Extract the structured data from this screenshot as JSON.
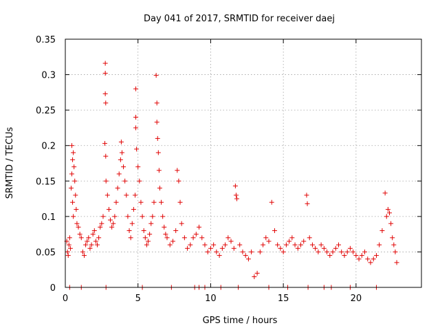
{
  "chart_data": {
    "type": "scatter",
    "title": "Day 041 of 2017, SRMTID for receiver daej",
    "xlabel": "GPS time / hours",
    "ylabel": "SRMTID / TECUs",
    "xlim": [
      0,
      24.5
    ],
    "ylim": [
      0,
      0.35
    ],
    "xticks": [
      0,
      5,
      10,
      15,
      20
    ],
    "xtick_labels": [
      "0",
      "5",
      "10",
      "15",
      "20"
    ],
    "yticks": [
      0,
      0.05,
      0.1,
      0.15,
      0.2,
      0.25,
      0.3,
      0.35
    ],
    "ytick_labels": [
      "0",
      "0.05",
      "0.1",
      "0.15",
      "0.2",
      "0.25",
      "0.3",
      "0.35"
    ],
    "grid": true,
    "marker": "plus",
    "color": "#e00000",
    "series": [
      {
        "name": "SRMTID",
        "points": [
          [
            0.1,
            0.065
          ],
          [
            0.15,
            0.05
          ],
          [
            0.2,
            0.045
          ],
          [
            0.25,
            0.06
          ],
          [
            0.3,
            0.07
          ],
          [
            0.35,
            0.055
          ],
          [
            0.4,
            0.14
          ],
          [
            0.45,
            0.16
          ],
          [
            0.5,
            0.18
          ],
          [
            0.55,
            0.19
          ],
          [
            0.6,
            0.17
          ],
          [
            0.65,
            0.15
          ],
          [
            0.7,
            0.13
          ],
          [
            0.75,
            0.11
          ],
          [
            0.8,
            0.09
          ],
          [
            0.45,
            0.2
          ],
          [
            0.5,
            0.12
          ],
          [
            0.55,
            0.1
          ],
          [
            0.9,
            0.085
          ],
          [
            1.0,
            0.075
          ],
          [
            1.1,
            0.07
          ],
          [
            1.2,
            0.05
          ],
          [
            1.3,
            0.045
          ],
          [
            1.4,
            0.06
          ],
          [
            1.5,
            0.065
          ],
          [
            1.6,
            0.07
          ],
          [
            1.7,
            0.055
          ],
          [
            1.8,
            0.06
          ],
          [
            1.9,
            0.075
          ],
          [
            2.0,
            0.08
          ],
          [
            2.1,
            0.065
          ],
          [
            2.2,
            0.06
          ],
          [
            2.3,
            0.07
          ],
          [
            2.4,
            0.085
          ],
          [
            2.5,
            0.09
          ],
          [
            2.6,
            0.1
          ],
          [
            2.75,
            0.316
          ],
          [
            2.75,
            0.302
          ],
          [
            2.75,
            0.273
          ],
          [
            2.78,
            0.26
          ],
          [
            2.72,
            0.203
          ],
          [
            2.78,
            0.185
          ],
          [
            2.8,
            0.15
          ],
          [
            2.9,
            0.13
          ],
          [
            3.0,
            0.11
          ],
          [
            3.1,
            0.095
          ],
          [
            3.2,
            0.085
          ],
          [
            3.3,
            0.09
          ],
          [
            3.4,
            0.1
          ],
          [
            3.5,
            0.12
          ],
          [
            3.6,
            0.14
          ],
          [
            3.7,
            0.16
          ],
          [
            3.8,
            0.18
          ],
          [
            3.85,
            0.205
          ],
          [
            3.9,
            0.19
          ],
          [
            4.0,
            0.17
          ],
          [
            4.1,
            0.15
          ],
          [
            4.2,
            0.13
          ],
          [
            4.3,
            0.1
          ],
          [
            4.4,
            0.08
          ],
          [
            4.5,
            0.07
          ],
          [
            4.6,
            0.09
          ],
          [
            4.7,
            0.11
          ],
          [
            4.8,
            0.13
          ],
          [
            4.85,
            0.28
          ],
          [
            4.85,
            0.24
          ],
          [
            4.85,
            0.225
          ],
          [
            4.9,
            0.195
          ],
          [
            5.0,
            0.17
          ],
          [
            5.1,
            0.15
          ],
          [
            5.2,
            0.12
          ],
          [
            5.3,
            0.1
          ],
          [
            5.4,
            0.08
          ],
          [
            5.5,
            0.07
          ],
          [
            5.6,
            0.06
          ],
          [
            5.7,
            0.065
          ],
          [
            5.8,
            0.075
          ],
          [
            5.9,
            0.09
          ],
          [
            6.0,
            0.1
          ],
          [
            6.1,
            0.12
          ],
          [
            6.25,
            0.299
          ],
          [
            6.3,
            0.26
          ],
          [
            6.3,
            0.233
          ],
          [
            6.35,
            0.21
          ],
          [
            6.4,
            0.19
          ],
          [
            6.45,
            0.165
          ],
          [
            6.5,
            0.14
          ],
          [
            6.6,
            0.12
          ],
          [
            6.7,
            0.1
          ],
          [
            6.8,
            0.085
          ],
          [
            6.9,
            0.075
          ],
          [
            7.0,
            0.07
          ],
          [
            7.2,
            0.06
          ],
          [
            7.4,
            0.065
          ],
          [
            7.6,
            0.08
          ],
          [
            7.7,
            0.165
          ],
          [
            7.8,
            0.15
          ],
          [
            7.9,
            0.12
          ],
          [
            8.0,
            0.09
          ],
          [
            8.2,
            0.07
          ],
          [
            8.4,
            0.055
          ],
          [
            8.6,
            0.06
          ],
          [
            8.8,
            0.07
          ],
          [
            9.0,
            0.075
          ],
          [
            9.2,
            0.085
          ],
          [
            9.4,
            0.07
          ],
          [
            9.6,
            0.06
          ],
          [
            9.8,
            0.05
          ],
          [
            10.0,
            0.055
          ],
          [
            10.2,
            0.06
          ],
          [
            10.4,
            0.05
          ],
          [
            10.6,
            0.045
          ],
          [
            10.8,
            0.055
          ],
          [
            11.0,
            0.06
          ],
          [
            11.2,
            0.07
          ],
          [
            11.4,
            0.065
          ],
          [
            11.6,
            0.055
          ],
          [
            11.7,
            0.143
          ],
          [
            11.75,
            0.13
          ],
          [
            11.8,
            0.125
          ],
          [
            12.0,
            0.06
          ],
          [
            12.2,
            0.05
          ],
          [
            12.4,
            0.045
          ],
          [
            12.6,
            0.04
          ],
          [
            12.8,
            0.05
          ],
          [
            13.0,
            0.015
          ],
          [
            13.2,
            0.02
          ],
          [
            13.4,
            0.05
          ],
          [
            13.6,
            0.06
          ],
          [
            13.8,
            0.07
          ],
          [
            14.0,
            0.065
          ],
          [
            14.2,
            0.12
          ],
          [
            14.4,
            0.08
          ],
          [
            14.6,
            0.06
          ],
          [
            14.8,
            0.055
          ],
          [
            15.0,
            0.05
          ],
          [
            15.2,
            0.06
          ],
          [
            15.4,
            0.065
          ],
          [
            15.6,
            0.07
          ],
          [
            15.8,
            0.06
          ],
          [
            16.0,
            0.055
          ],
          [
            16.2,
            0.06
          ],
          [
            16.4,
            0.065
          ],
          [
            16.6,
            0.13
          ],
          [
            16.65,
            0.118
          ],
          [
            16.8,
            0.07
          ],
          [
            17.0,
            0.06
          ],
          [
            17.2,
            0.055
          ],
          [
            17.4,
            0.05
          ],
          [
            17.6,
            0.06
          ],
          [
            17.8,
            0.055
          ],
          [
            18.0,
            0.05
          ],
          [
            18.2,
            0.045
          ],
          [
            18.4,
            0.05
          ],
          [
            18.6,
            0.055
          ],
          [
            18.8,
            0.06
          ],
          [
            19.0,
            0.05
          ],
          [
            19.2,
            0.045
          ],
          [
            19.4,
            0.05
          ],
          [
            19.6,
            0.055
          ],
          [
            19.8,
            0.05
          ],
          [
            20.0,
            0.045
          ],
          [
            20.2,
            0.04
          ],
          [
            20.4,
            0.045
          ],
          [
            20.6,
            0.05
          ],
          [
            20.8,
            0.04
          ],
          [
            21.0,
            0.035
          ],
          [
            21.2,
            0.04
          ],
          [
            21.4,
            0.045
          ],
          [
            21.6,
            0.06
          ],
          [
            21.8,
            0.08
          ],
          [
            22.0,
            0.133
          ],
          [
            22.1,
            0.1
          ],
          [
            22.2,
            0.11
          ],
          [
            22.3,
            0.105
          ],
          [
            22.4,
            0.09
          ],
          [
            22.5,
            0.07
          ],
          [
            22.6,
            0.06
          ],
          [
            22.7,
            0.05
          ],
          [
            22.8,
            0.035
          ],
          [
            0.3,
            0.0
          ],
          [
            1.1,
            0.0
          ],
          [
            2.8,
            0.0
          ],
          [
            5.3,
            0.0
          ],
          [
            7.3,
            0.0
          ],
          [
            8.9,
            0.0
          ],
          [
            9.2,
            0.0
          ],
          [
            9.6,
            0.0
          ],
          [
            10.7,
            0.0
          ],
          [
            11.9,
            0.0
          ],
          [
            14.0,
            0.0
          ],
          [
            15.3,
            0.0
          ],
          [
            16.7,
            0.0
          ],
          [
            17.8,
            0.0
          ],
          [
            18.3,
            0.0
          ],
          [
            19.6,
            0.0
          ],
          [
            21.4,
            0.0
          ]
        ]
      }
    ]
  }
}
